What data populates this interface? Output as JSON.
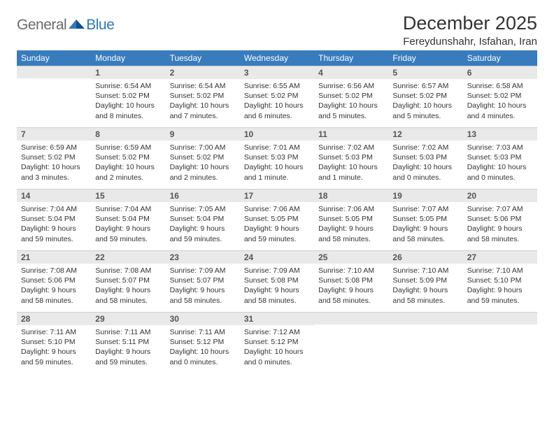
{
  "logo": {
    "general": "General",
    "blue": "Blue"
  },
  "header": {
    "title": "December 2025",
    "location": "Fereydunshahr, Isfahan, Iran"
  },
  "theme": {
    "header_bg": "#387cbd",
    "header_text": "#ffffff",
    "daynum_bg": "#e9e9e9",
    "daynum_text": "#555555",
    "body_text": "#333333",
    "logo_gray": "#6a6a6a",
    "logo_blue": "#2f79b9",
    "page_bg": "#ffffff"
  },
  "weekdays": [
    "Sunday",
    "Monday",
    "Tuesday",
    "Wednesday",
    "Thursday",
    "Friday",
    "Saturday"
  ],
  "weeks": [
    [
      null,
      {
        "n": "1",
        "sr": "6:54 AM",
        "ss": "5:02 PM",
        "dl": "10 hours and 8 minutes."
      },
      {
        "n": "2",
        "sr": "6:54 AM",
        "ss": "5:02 PM",
        "dl": "10 hours and 7 minutes."
      },
      {
        "n": "3",
        "sr": "6:55 AM",
        "ss": "5:02 PM",
        "dl": "10 hours and 6 minutes."
      },
      {
        "n": "4",
        "sr": "6:56 AM",
        "ss": "5:02 PM",
        "dl": "10 hours and 5 minutes."
      },
      {
        "n": "5",
        "sr": "6:57 AM",
        "ss": "5:02 PM",
        "dl": "10 hours and 5 minutes."
      },
      {
        "n": "6",
        "sr": "6:58 AM",
        "ss": "5:02 PM",
        "dl": "10 hours and 4 minutes."
      }
    ],
    [
      {
        "n": "7",
        "sr": "6:59 AM",
        "ss": "5:02 PM",
        "dl": "10 hours and 3 minutes."
      },
      {
        "n": "8",
        "sr": "6:59 AM",
        "ss": "5:02 PM",
        "dl": "10 hours and 2 minutes."
      },
      {
        "n": "9",
        "sr": "7:00 AM",
        "ss": "5:02 PM",
        "dl": "10 hours and 2 minutes."
      },
      {
        "n": "10",
        "sr": "7:01 AM",
        "ss": "5:03 PM",
        "dl": "10 hours and 1 minute."
      },
      {
        "n": "11",
        "sr": "7:02 AM",
        "ss": "5:03 PM",
        "dl": "10 hours and 1 minute."
      },
      {
        "n": "12",
        "sr": "7:02 AM",
        "ss": "5:03 PM",
        "dl": "10 hours and 0 minutes."
      },
      {
        "n": "13",
        "sr": "7:03 AM",
        "ss": "5:03 PM",
        "dl": "10 hours and 0 minutes."
      }
    ],
    [
      {
        "n": "14",
        "sr": "7:04 AM",
        "ss": "5:04 PM",
        "dl": "9 hours and 59 minutes."
      },
      {
        "n": "15",
        "sr": "7:04 AM",
        "ss": "5:04 PM",
        "dl": "9 hours and 59 minutes."
      },
      {
        "n": "16",
        "sr": "7:05 AM",
        "ss": "5:04 PM",
        "dl": "9 hours and 59 minutes."
      },
      {
        "n": "17",
        "sr": "7:06 AM",
        "ss": "5:05 PM",
        "dl": "9 hours and 59 minutes."
      },
      {
        "n": "18",
        "sr": "7:06 AM",
        "ss": "5:05 PM",
        "dl": "9 hours and 58 minutes."
      },
      {
        "n": "19",
        "sr": "7:07 AM",
        "ss": "5:05 PM",
        "dl": "9 hours and 58 minutes."
      },
      {
        "n": "20",
        "sr": "7:07 AM",
        "ss": "5:06 PM",
        "dl": "9 hours and 58 minutes."
      }
    ],
    [
      {
        "n": "21",
        "sr": "7:08 AM",
        "ss": "5:06 PM",
        "dl": "9 hours and 58 minutes."
      },
      {
        "n": "22",
        "sr": "7:08 AM",
        "ss": "5:07 PM",
        "dl": "9 hours and 58 minutes."
      },
      {
        "n": "23",
        "sr": "7:09 AM",
        "ss": "5:07 PM",
        "dl": "9 hours and 58 minutes."
      },
      {
        "n": "24",
        "sr": "7:09 AM",
        "ss": "5:08 PM",
        "dl": "9 hours and 58 minutes."
      },
      {
        "n": "25",
        "sr": "7:10 AM",
        "ss": "5:08 PM",
        "dl": "9 hours and 58 minutes."
      },
      {
        "n": "26",
        "sr": "7:10 AM",
        "ss": "5:09 PM",
        "dl": "9 hours and 58 minutes."
      },
      {
        "n": "27",
        "sr": "7:10 AM",
        "ss": "5:10 PM",
        "dl": "9 hours and 59 minutes."
      }
    ],
    [
      {
        "n": "28",
        "sr": "7:11 AM",
        "ss": "5:10 PM",
        "dl": "9 hours and 59 minutes."
      },
      {
        "n": "29",
        "sr": "7:11 AM",
        "ss": "5:11 PM",
        "dl": "9 hours and 59 minutes."
      },
      {
        "n": "30",
        "sr": "7:11 AM",
        "ss": "5:12 PM",
        "dl": "10 hours and 0 minutes."
      },
      {
        "n": "31",
        "sr": "7:12 AM",
        "ss": "5:12 PM",
        "dl": "10 hours and 0 minutes."
      },
      null,
      null,
      null
    ]
  ],
  "labels": {
    "sunrise": "Sunrise: ",
    "sunset": "Sunset: ",
    "daylight": "Daylight: "
  }
}
